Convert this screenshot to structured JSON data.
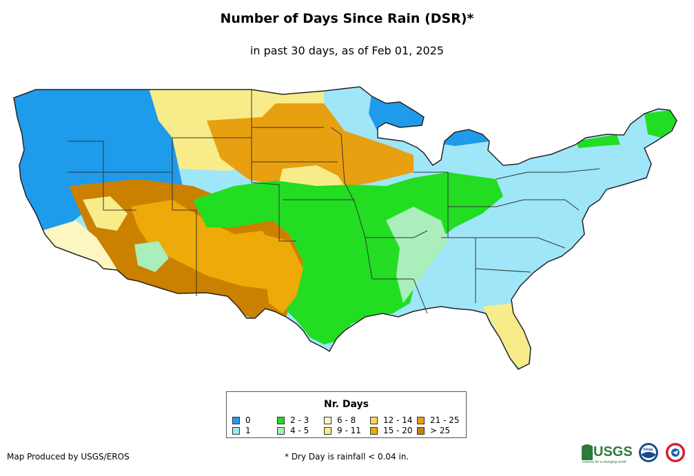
{
  "title": "Number of Days Since Rain (DSR)*",
  "subtitle": "in past 30 days, as of Feb 01, 2025",
  "legend": {
    "title": "Nr. Days",
    "items": [
      {
        "label": "0",
        "color": "#1e9bea"
      },
      {
        "label": "1",
        "color": "#9fe6f8"
      },
      {
        "label": "2 - 3",
        "color": "#22dd22"
      },
      {
        "label": "4 - 5",
        "color": "#aaeebb"
      },
      {
        "label": "6 - 8",
        "color": "#fcf7c2"
      },
      {
        "label": "9 - 11",
        "color": "#f8ec8a"
      },
      {
        "label": "12 - 14",
        "color": "#f6d45a"
      },
      {
        "label": "15 - 20",
        "color": "#eeaa08"
      },
      {
        "label": "21 - 25",
        "color": "#e8a010"
      },
      {
        "label": "> 25",
        "color": "#cc8000"
      }
    ]
  },
  "footer": {
    "credit": "Map Produced by USGS/EROS",
    "note": "* Dry Day is rainfall < 0.04 in."
  },
  "logos": {
    "usgs": "USGS",
    "usgs_tagline": "science for a changing world",
    "noaa": "noaa",
    "nws_icon": "national-weather-service-icon"
  },
  "colors": {
    "state_border": "#333333",
    "outline": "#222222"
  }
}
